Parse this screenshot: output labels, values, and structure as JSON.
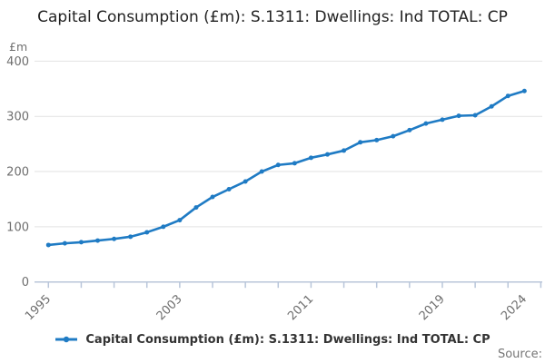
{
  "header": {
    "title": "Capital Consumption (£m): S.1311: Dwellings: Ind TOTAL: CP"
  },
  "chart_data": {
    "type": "line",
    "title": "Capital Consumption (£m): S.1311: Dwellings: Ind TOTAL: CP",
    "unit_label": "£m",
    "x": [
      1995,
      1996,
      1997,
      1998,
      1999,
      2000,
      2001,
      2002,
      2003,
      2004,
      2005,
      2006,
      2007,
      2008,
      2009,
      2010,
      2011,
      2012,
      2013,
      2014,
      2015,
      2016,
      2017,
      2018,
      2019,
      2020,
      2021,
      2022,
      2023,
      2024
    ],
    "series": [
      {
        "name": "Capital Consumption (£m): S.1311: Dwellings: Ind TOTAL: CP",
        "values": [
          67,
          70,
          72,
          75,
          78,
          82,
          90,
          100,
          112,
          135,
          154,
          168,
          182,
          200,
          212,
          215,
          225,
          231,
          238,
          253,
          257,
          264,
          275,
          287,
          294,
          301,
          302,
          318,
          337,
          346
        ]
      }
    ],
    "ylim": [
      0,
      400
    ],
    "yticks": [
      0,
      100,
      200,
      300,
      400
    ],
    "xtick_minor_step_years": 2,
    "xtick_labels": [
      {
        "year": 1995,
        "label": "1995"
      },
      {
        "year": 2003,
        "label": "2003"
      },
      {
        "year": 2011,
        "label": "2011"
      },
      {
        "year": 2019,
        "label": "2019"
      },
      {
        "year": 2024,
        "label": "2024"
      }
    ],
    "grid": "horizontal",
    "legend_position": "bottom",
    "colors": {
      "line": "#1f7bc4",
      "gridline": "#e2e2e2",
      "axis": "#b9c6da",
      "tick_label": "#6e6e6e",
      "title_text": "#222222",
      "legend_text": "#333333",
      "source_text": "#757575"
    }
  },
  "legend": {
    "label": "Capital Consumption (£m): S.1311: Dwellings: Ind TOTAL: CP"
  },
  "footer": {
    "source_label": "Source:"
  }
}
